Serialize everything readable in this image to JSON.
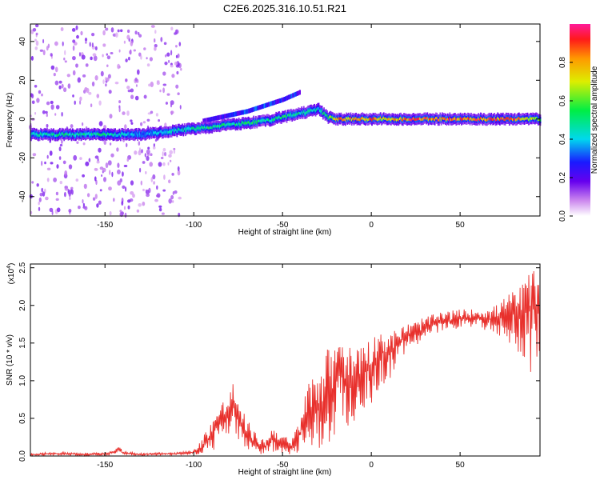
{
  "figure_title": "C2E6.2025.316.10.51.R21",
  "chart_data": [
    {
      "type": "heatmap",
      "title": "",
      "xlabel": "Height of straight line (km)",
      "ylabel": "Frequency (Hz)",
      "xlim": [
        -192,
        95
      ],
      "ylim": [
        -50,
        49
      ],
      "xticks": [
        -150,
        -100,
        -50,
        0,
        50
      ],
      "yticks": [
        -40,
        -20,
        0,
        20,
        40
      ],
      "grid": false,
      "colorbar": {
        "label": "Normalized spectral amplitude",
        "range": [
          0,
          1
        ],
        "ticks": [
          "0.0",
          "0.2",
          "0.4",
          "0.6",
          "0.8"
        ],
        "colormap": "rainbow (white-violet-blue-cyan-green-yellow-red-magenta)"
      },
      "ridge": {
        "description": "main spectral ridge frequency vs height",
        "x": [
          -192,
          -170,
          -150,
          -130,
          -110,
          -100,
          -90,
          -80,
          -70,
          -60,
          -50,
          -40,
          -35,
          -30,
          -25,
          -20,
          -10,
          0,
          10,
          20,
          40,
          60,
          80,
          95
        ],
        "freq": [
          -8,
          -8,
          -8,
          -8,
          -6,
          -5,
          -4,
          -3,
          -2,
          -1,
          1,
          3,
          4,
          5,
          1,
          0,
          0,
          0,
          0,
          0,
          0,
          0,
          0,
          0
        ],
        "amplitude": [
          0.45,
          0.5,
          0.5,
          0.35,
          0.45,
          0.5,
          0.55,
          0.5,
          0.55,
          0.5,
          0.55,
          0.5,
          0.5,
          0.45,
          0.6,
          0.85,
          0.8,
          0.85,
          0.75,
          0.9,
          0.9,
          0.9,
          0.9,
          0.6
        ]
      },
      "secondary_ridge": {
        "x": [
          -95,
          -80,
          -70,
          -60,
          -50,
          -45,
          -40
        ],
        "freq": [
          -1,
          2,
          4,
          7,
          10,
          12,
          14
        ],
        "amplitude": [
          0.2,
          0.25,
          0.3,
          0.3,
          0.25,
          0.3,
          0.2
        ]
      }
    },
    {
      "type": "line",
      "title": "",
      "xlabel": "Height of straight line (km)",
      "ylabel": "SNR (10 * v/v)",
      "y_multiplier": "(x10",
      "y_multiplier_exp": "4",
      "y_multiplier_close": ")",
      "xlim": [
        -192,
        95
      ],
      "ylim": [
        0,
        2.55
      ],
      "xticks": [
        -150,
        -100,
        -50,
        0,
        50
      ],
      "yticks": [
        "0.0",
        "0.5",
        "1.0",
        "1.5",
        "2.0",
        "2.5"
      ],
      "grid": false,
      "series": [
        {
          "color": "#e8302c",
          "x": [
            -192,
            -180,
            -170,
            -160,
            -150,
            -145,
            -142,
            -140,
            -130,
            -120,
            -110,
            -100,
            -95,
            -90,
            -85,
            -80,
            -78,
            -75,
            -70,
            -65,
            -60,
            -55,
            -50,
            -45,
            -40,
            -35,
            -30,
            -25,
            -20,
            -18,
            -15,
            -10,
            -5,
            0,
            5,
            10,
            15,
            20,
            25,
            30,
            35,
            40,
            50,
            60,
            70,
            75,
            80,
            85,
            90,
            95
          ],
          "y": [
            0.02,
            0.03,
            0.03,
            0.02,
            0.03,
            0.05,
            0.12,
            0.04,
            0.02,
            0.03,
            0.03,
            0.05,
            0.12,
            0.3,
            0.45,
            0.55,
            0.75,
            0.45,
            0.3,
            0.15,
            0.12,
            0.25,
            0.15,
            0.1,
            0.3,
            0.55,
            0.65,
            0.8,
            0.9,
            1.45,
            0.95,
            1.0,
            1.1,
            1.2,
            1.4,
            1.35,
            1.5,
            1.6,
            1.62,
            1.7,
            1.75,
            1.78,
            1.82,
            1.85,
            1.8,
            1.95,
            1.9,
            1.85,
            2.0,
            1.9
          ],
          "envelope_max": [
            0.04,
            0.05,
            0.05,
            0.04,
            0.05,
            0.07,
            0.16,
            0.06,
            0.04,
            0.05,
            0.05,
            0.08,
            0.25,
            0.5,
            0.7,
            0.85,
            0.98,
            0.7,
            0.5,
            0.3,
            0.22,
            0.4,
            0.3,
            0.2,
            0.55,
            1.05,
            1.2,
            1.45,
            1.4,
            1.85,
            1.5,
            1.45,
            1.6,
            1.55,
            1.7,
            1.6,
            1.72,
            1.75,
            1.8,
            1.85,
            1.88,
            1.92,
            1.95,
            1.95,
            2.0,
            2.1,
            2.2,
            2.3,
            2.5,
            2.35
          ],
          "envelope_min": [
            0.0,
            0.01,
            0.01,
            0.0,
            0.01,
            0.02,
            0.06,
            0.02,
            0.0,
            0.01,
            0.01,
            0.02,
            0.02,
            0.05,
            0.15,
            0.2,
            0.4,
            0.15,
            0.08,
            0.02,
            0.02,
            0.05,
            0.03,
            0.02,
            0.05,
            0.05,
            0.1,
            0.15,
            0.2,
            0.8,
            0.35,
            0.4,
            0.55,
            0.65,
            0.9,
            1.0,
            1.2,
            1.4,
            1.45,
            1.55,
            1.6,
            1.65,
            1.7,
            1.72,
            1.6,
            1.5,
            1.45,
            1.3,
            1.05,
            1.4
          ]
        }
      ]
    }
  ]
}
